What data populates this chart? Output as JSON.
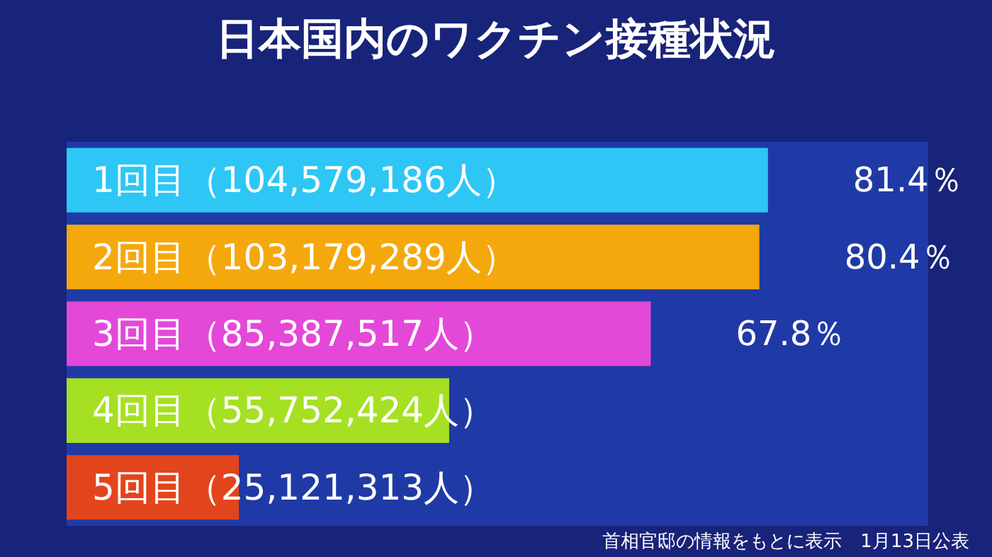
{
  "chart_data": {
    "type": "bar",
    "orientation": "horizontal",
    "title": "日本国内のワクチン接種状況",
    "categories": [
      "1回目（104,579,186人）",
      "2回目（103,179,289人）",
      "3回目（85,387,517人）",
      "4回目（55,752,424人）",
      "5回目（25,121,313人）"
    ],
    "values": [
      81.4,
      80.4,
      67.8,
      44.4,
      20.0
    ],
    "value_labels": [
      "81.4％",
      "80.4％",
      "67.8％",
      null,
      null
    ],
    "colors": [
      "#2ec6f5",
      "#f5a80c",
      "#e448d8",
      "#a6e022",
      "#e2451c"
    ],
    "xlim": [
      0,
      100
    ],
    "tick_labels": "y",
    "grid": false,
    "annotations": [
      "首相官邸の情報をもとに表示　1月13日公表"
    ]
  }
}
